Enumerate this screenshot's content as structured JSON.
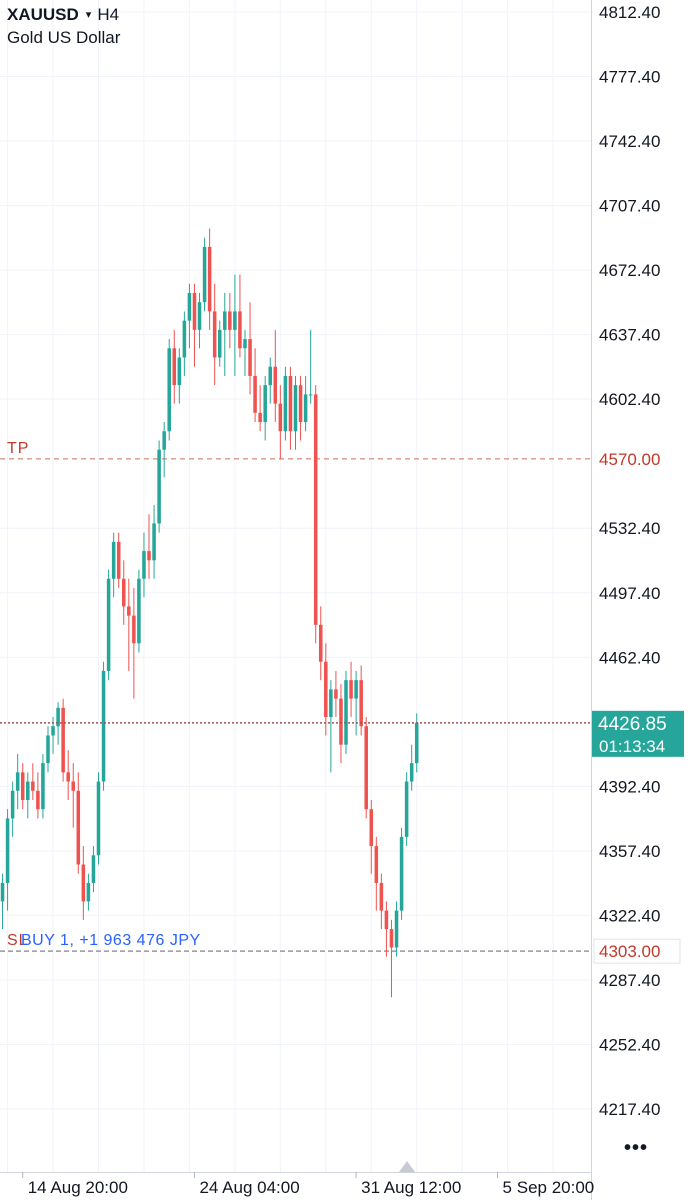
{
  "header": {
    "symbol": "XAUUSD",
    "caret": "▾",
    "interval": "H4",
    "description": "Gold US Dollar"
  },
  "more_label": "•••",
  "colors": {
    "up": "#26a69a",
    "down": "#ef5350",
    "tp": "#c0392b",
    "sl": "#c0392b",
    "position": "#2962ff",
    "grid": "#f0f3fa",
    "axis_text": "#131722"
  },
  "chart_data": {
    "type": "candlestick",
    "symbol": "XAUUSD",
    "interval": "H4",
    "ylim": [
      4200,
      4820
    ],
    "y_ticks": [
      4812.4,
      4777.4,
      4742.4,
      4707.4,
      4672.4,
      4637.4,
      4602.4,
      4532.4,
      4497.4,
      4462.4,
      4392.4,
      4357.4,
      4322.4,
      4287.4,
      4252.4,
      4217.4
    ],
    "x_ticks": [
      {
        "label": "14 Aug 20:00",
        "index": 4
      },
      {
        "label": "24 Aug 04:00",
        "index": 38
      },
      {
        "label": "31 Aug 12:00",
        "index": 70
      },
      {
        "label": "5 Sep 20:00",
        "index": 98
      }
    ],
    "n_slots": 117,
    "lines": {
      "tp": {
        "label": "TP",
        "price": 4570.0,
        "price_label": "4570.00"
      },
      "sl": {
        "label": "SL",
        "price": 4303.0,
        "price_label": "4303.00"
      },
      "position": {
        "label": "BUY 1, +1 963 476 JPY",
        "price": 4303.0
      },
      "current": {
        "price": 4426.85,
        "price_label": "4426.85",
        "countdown": "01:13:34"
      }
    },
    "candles": [
      [
        4330,
        4345,
        4315,
        4340
      ],
      [
        4340,
        4380,
        4325,
        4375
      ],
      [
        4375,
        4395,
        4365,
        4390
      ],
      [
        4390,
        4410,
        4380,
        4400
      ],
      [
        4400,
        4405,
        4380,
        4385
      ],
      [
        4385,
        4400,
        4375,
        4395
      ],
      [
        4395,
        4405,
        4385,
        4390
      ],
      [
        4390,
        4400,
        4375,
        4380
      ],
      [
        4380,
        4410,
        4375,
        4405
      ],
      [
        4405,
        4425,
        4400,
        4420
      ],
      [
        4420,
        4430,
        4410,
        4425
      ],
      [
        4425,
        4438,
        4415,
        4435
      ],
      [
        4435,
        4440,
        4395,
        4400
      ],
      [
        4400,
        4412,
        4385,
        4395
      ],
      [
        4395,
        4405,
        4370,
        4390
      ],
      [
        4390,
        4400,
        4345,
        4350
      ],
      [
        4350,
        4360,
        4320,
        4330
      ],
      [
        4330,
        4345,
        4325,
        4340
      ],
      [
        4340,
        4360,
        4335,
        4355
      ],
      [
        4355,
        4400,
        4350,
        4395
      ],
      [
        4395,
        4460,
        4390,
        4455
      ],
      [
        4455,
        4510,
        4450,
        4505
      ],
      [
        4505,
        4530,
        4495,
        4525
      ],
      [
        4525,
        4530,
        4500,
        4505
      ],
      [
        4505,
        4515,
        4480,
        4490
      ],
      [
        4490,
        4505,
        4455,
        4485
      ],
      [
        4485,
        4500,
        4440,
        4470
      ],
      [
        4470,
        4510,
        4465,
        4505
      ],
      [
        4505,
        4530,
        4495,
        4520
      ],
      [
        4520,
        4540,
        4505,
        4515
      ],
      [
        4515,
        4545,
        4505,
        4535
      ],
      [
        4535,
        4580,
        4530,
        4575
      ],
      [
        4575,
        4590,
        4560,
        4585
      ],
      [
        4585,
        4635,
        4580,
        4630
      ],
      [
        4630,
        4640,
        4600,
        4610
      ],
      [
        4610,
        4630,
        4600,
        4625
      ],
      [
        4625,
        4650,
        4615,
        4645
      ],
      [
        4645,
        4665,
        4630,
        4660
      ],
      [
        4660,
        4665,
        4620,
        4640
      ],
      [
        4640,
        4660,
        4630,
        4655
      ],
      [
        4655,
        4690,
        4650,
        4685
      ],
      [
        4685,
        4695,
        4640,
        4650
      ],
      [
        4650,
        4665,
        4610,
        4625
      ],
      [
        4625,
        4645,
        4620,
        4640
      ],
      [
        4640,
        4660,
        4615,
        4650
      ],
      [
        4650,
        4660,
        4630,
        4640
      ],
      [
        4640,
        4670,
        4615,
        4650
      ],
      [
        4650,
        4670,
        4625,
        4630
      ],
      [
        4630,
        4640,
        4615,
        4635
      ],
      [
        4635,
        4655,
        4605,
        4615
      ],
      [
        4615,
        4630,
        4590,
        4595
      ],
      [
        4595,
        4610,
        4585,
        4590
      ],
      [
        4590,
        4615,
        4580,
        4610
      ],
      [
        4610,
        4625,
        4600,
        4620
      ],
      [
        4620,
        4640,
        4590,
        4600
      ],
      [
        4600,
        4610,
        4570,
        4585
      ],
      [
        4585,
        4620,
        4580,
        4615
      ],
      [
        4615,
        4620,
        4575,
        4585
      ],
      [
        4585,
        4615,
        4575,
        4610
      ],
      [
        4610,
        4615,
        4580,
        4590
      ],
      [
        4590,
        4615,
        4585,
        4605
      ],
      [
        4605,
        4640,
        4600,
        4605
      ],
      [
        4605,
        4610,
        4470,
        4480
      ],
      [
        4480,
        4490,
        4450,
        4460
      ],
      [
        4460,
        4470,
        4420,
        4430
      ],
      [
        4430,
        4450,
        4400,
        4445
      ],
      [
        4445,
        4455,
        4430,
        4440
      ],
      [
        4440,
        4448,
        4405,
        4415
      ],
      [
        4415,
        4455,
        4410,
        4450
      ],
      [
        4450,
        4460,
        4430,
        4440
      ],
      [
        4440,
        4455,
        4420,
        4450
      ],
      [
        4450,
        4458,
        4420,
        4425
      ],
      [
        4425,
        4430,
        4375,
        4380
      ],
      [
        4380,
        4385,
        4345,
        4360
      ],
      [
        4360,
        4365,
        4325,
        4340
      ],
      [
        4340,
        4345,
        4315,
        4325
      ],
      [
        4325,
        4330,
        4300,
        4315
      ],
      [
        4315,
        4320,
        4278,
        4305
      ],
      [
        4305,
        4330,
        4300,
        4325
      ],
      [
        4325,
        4370,
        4320,
        4365
      ],
      [
        4365,
        4400,
        4360,
        4395
      ],
      [
        4395,
        4415,
        4390,
        4405
      ],
      [
        4405,
        4432,
        4400,
        4426.85
      ]
    ]
  }
}
